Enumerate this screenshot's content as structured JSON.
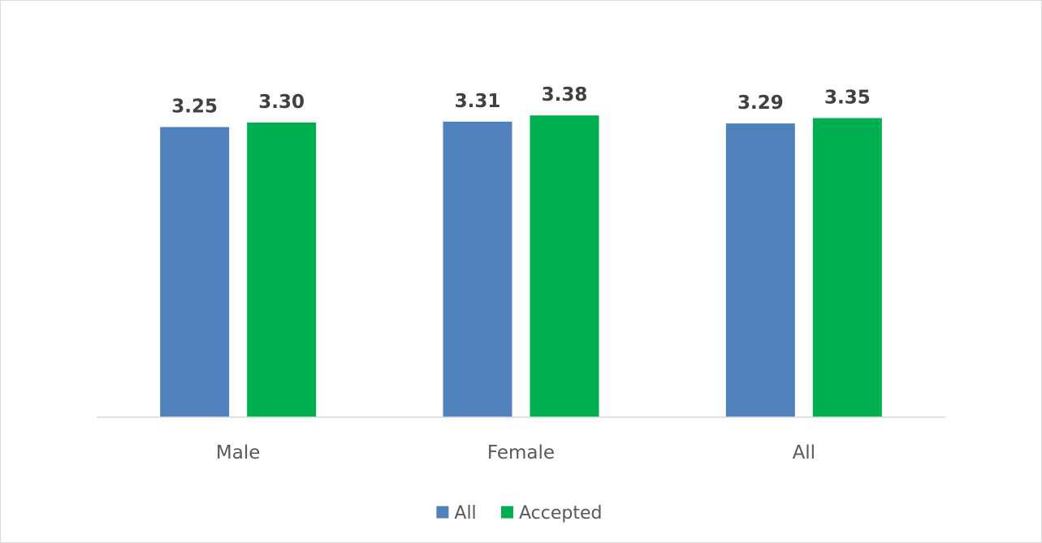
{
  "chart_data": {
    "type": "bar",
    "title": "",
    "xlabel": "",
    "ylabel": "",
    "categories": [
      "Male",
      "Female",
      "All"
    ],
    "series": [
      {
        "name": "All",
        "color": "#4f81bd",
        "values": [
          3.25,
          3.31,
          3.29
        ],
        "labels": [
          "3.25",
          "3.31",
          "3.29"
        ]
      },
      {
        "name": "Accepted",
        "color": "#00b050",
        "values": [
          3.3,
          3.38,
          3.35
        ],
        "labels": [
          "3.30",
          "3.38",
          "3.35"
        ]
      }
    ],
    "ylim": [
      0,
      3.9
    ],
    "grid": false,
    "legend": "bottom",
    "data_labels": true
  }
}
